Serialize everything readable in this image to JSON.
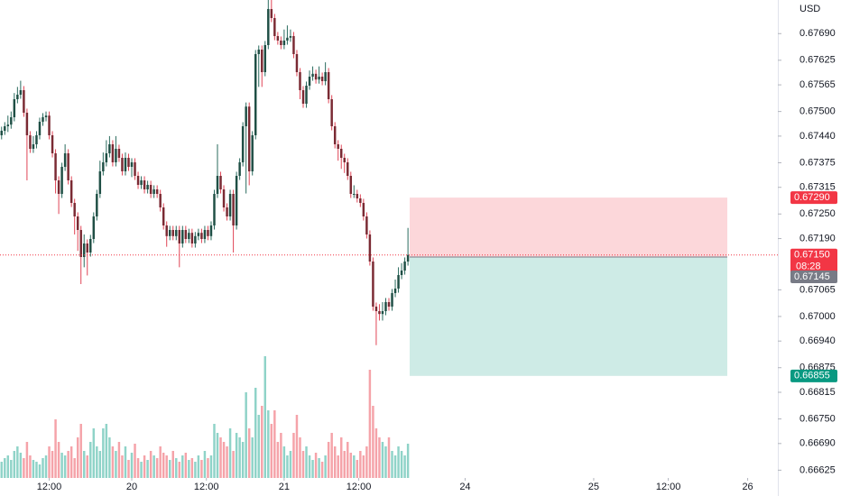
{
  "chart_data": {
    "type": "candlestick",
    "currency": "USD",
    "ylim": [
      0.66606,
      0.67772
    ],
    "xlim": [
      0,
      245
    ],
    "yticks": [
      {
        "value": 0.6769,
        "label": "0.67690"
      },
      {
        "value": 0.67625,
        "label": "0.67625"
      },
      {
        "value": 0.67565,
        "label": "0.67565"
      },
      {
        "value": 0.675,
        "label": "0.67500"
      },
      {
        "value": 0.6744,
        "label": "0.67440"
      },
      {
        "value": 0.67375,
        "label": "0.67375"
      },
      {
        "value": 0.67315,
        "label": "0.67315"
      },
      {
        "value": 0.6725,
        "label": "0.67250"
      },
      {
        "value": 0.6719,
        "label": "0.67190"
      },
      {
        "value": 0.67065,
        "label": "0.67065"
      },
      {
        "value": 0.67,
        "label": "0.67000"
      },
      {
        "value": 0.6694,
        "label": "0.66940"
      },
      {
        "value": 0.66875,
        "label": "0.66875"
      },
      {
        "value": 0.66815,
        "label": "0.66815"
      },
      {
        "value": 0.6675,
        "label": "0.66750"
      },
      {
        "value": 0.6669,
        "label": "0.66690"
      },
      {
        "value": 0.66625,
        "label": "0.66625"
      }
    ],
    "xticks": [
      {
        "value": 15.5,
        "label": "12:00"
      },
      {
        "value": 41.5,
        "label": "20"
      },
      {
        "value": 65,
        "label": "12:00"
      },
      {
        "value": 89.5,
        "label": "21"
      },
      {
        "value": 113,
        "label": "12:00"
      },
      {
        "value": 146.5,
        "label": "24"
      },
      {
        "value": 187,
        "label": "25"
      },
      {
        "value": 210.5,
        "label": "12:00"
      },
      {
        "value": 235.5,
        "label": "26"
      }
    ],
    "colors": {
      "up": "#1f4f45",
      "down": "#7a2a33",
      "up_wick": "#2a6b5e",
      "down_wick": "#e04556",
      "up_volume": "#8fd3c8",
      "down_volume": "#f5a3a9"
    },
    "open": [
      0.67442,
      0.67453,
      0.67464,
      0.67468,
      0.67486,
      0.6753,
      0.67541,
      0.67552,
      0.67497,
      0.67442,
      0.67409,
      0.6742,
      0.67442,
      0.67475,
      0.67486,
      0.6749,
      0.67442,
      0.67398,
      0.67332,
      0.67299,
      0.67365,
      0.67398,
      0.67332,
      0.67277,
      0.67244,
      0.67211,
      0.67145,
      0.67178,
      0.67156,
      0.67189,
      0.67244,
      0.67299,
      0.67354,
      0.67376,
      0.67398,
      0.6742,
      0.67376,
      0.67409,
      0.67387,
      0.67354,
      0.67387,
      0.67365,
      0.67376,
      0.67343,
      0.67321,
      0.67332,
      0.6731,
      0.67321,
      0.67299,
      0.6731,
      0.67299,
      0.67266,
      0.67222,
      0.67196,
      0.67211,
      0.67196,
      0.67211,
      0.67178,
      0.67211,
      0.67189,
      0.67204,
      0.67178,
      0.67196,
      0.67204,
      0.67189,
      0.67211,
      0.67196,
      0.67222,
      0.67299,
      0.67343,
      0.6731,
      0.67266,
      0.67244,
      0.67299,
      0.67222,
      0.67343,
      0.67376,
      0.67464,
      0.67512,
      0.67354,
      0.67442,
      0.6764,
      0.67651,
      0.67596,
      0.67662,
      0.6775,
      0.67728,
      0.67684,
      0.67673,
      0.67662,
      0.67673,
      0.6768,
      0.67684,
      0.6764,
      0.67596,
      0.67552,
      0.67519,
      0.67563,
      0.67585,
      0.67592,
      0.67578,
      0.67585,
      0.67574,
      0.67596,
      0.6753,
      0.67464,
      0.6742,
      0.67409,
      0.67387,
      0.67376,
      0.67343,
      0.67299,
      0.67299,
      0.67288,
      0.67277,
      0.67244,
      0.672,
      0.67134,
      0.67024,
      0.67013,
      0.67006,
      0.67013,
      0.67035,
      0.67024,
      0.67057,
      0.67068,
      0.67101,
      0.67112,
      0.67134
    ],
    "high": [
      0.67463,
      0.67474,
      0.6749,
      0.675,
      0.67545,
      0.6756,
      0.67575,
      0.67562,
      0.67507,
      0.67452,
      0.6744,
      0.67452,
      0.67485,
      0.67496,
      0.675,
      0.675,
      0.67452,
      0.67408,
      0.67342,
      0.67375,
      0.6742,
      0.67408,
      0.67342,
      0.67287,
      0.67254,
      0.67221,
      0.672,
      0.67188,
      0.67199,
      0.67254,
      0.67309,
      0.6738,
      0.674,
      0.6743,
      0.6744,
      0.6743,
      0.6744,
      0.67419,
      0.67397,
      0.674,
      0.67397,
      0.67386,
      0.67386,
      0.67353,
      0.67342,
      0.67342,
      0.67331,
      0.67331,
      0.6732,
      0.6732,
      0.67309,
      0.67276,
      0.67232,
      0.67221,
      0.67221,
      0.67221,
      0.67221,
      0.67221,
      0.67221,
      0.67214,
      0.67214,
      0.67206,
      0.67214,
      0.67214,
      0.67221,
      0.67221,
      0.67232,
      0.67309,
      0.6742,
      0.67353,
      0.6732,
      0.67276,
      0.67309,
      0.67309,
      0.67353,
      0.67386,
      0.67474,
      0.67522,
      0.67522,
      0.67452,
      0.6765,
      0.67661,
      0.67661,
      0.67672,
      0.67772,
      0.67772,
      0.67738,
      0.67694,
      0.67683,
      0.677,
      0.6771,
      0.677,
      0.67694,
      0.6765,
      0.67606,
      0.67562,
      0.67573,
      0.676,
      0.6761,
      0.67602,
      0.6761,
      0.67595,
      0.6762,
      0.67606,
      0.6754,
      0.67474,
      0.6743,
      0.67419,
      0.67397,
      0.67386,
      0.67353,
      0.6732,
      0.67309,
      0.67298,
      0.67287,
      0.67254,
      0.6721,
      0.67144,
      0.67034,
      0.6703,
      0.67035,
      0.67045,
      0.67045,
      0.67067,
      0.6709,
      0.6712,
      0.6713,
      0.67144,
      0.67216
    ],
    "low": [
      0.67432,
      0.67443,
      0.6745,
      0.67458,
      0.67476,
      0.6752,
      0.67531,
      0.67487,
      0.67332,
      0.67399,
      0.67399,
      0.6741,
      0.67432,
      0.67465,
      0.67476,
      0.67432,
      0.67388,
      0.673,
      0.6725,
      0.67289,
      0.67355,
      0.67322,
      0.67267,
      0.672,
      0.6716,
      0.67079,
      0.6712,
      0.671,
      0.67146,
      0.67179,
      0.67234,
      0.67289,
      0.67344,
      0.67366,
      0.67388,
      0.67366,
      0.67366,
      0.67377,
      0.67344,
      0.67344,
      0.67355,
      0.6734,
      0.67333,
      0.67311,
      0.67311,
      0.673,
      0.673,
      0.67289,
      0.67289,
      0.67289,
      0.67256,
      0.67212,
      0.6717,
      0.67186,
      0.67186,
      0.67186,
      0.6712,
      0.67168,
      0.67179,
      0.67179,
      0.67168,
      0.67168,
      0.67186,
      0.67179,
      0.67179,
      0.67186,
      0.67186,
      0.67212,
      0.67289,
      0.673,
      0.67256,
      0.67234,
      0.67234,
      0.67156,
      0.67212,
      0.67333,
      0.67366,
      0.673,
      0.6732,
      0.67344,
      0.67432,
      0.6756,
      0.6756,
      0.67586,
      0.67652,
      0.67718,
      0.67674,
      0.67663,
      0.67652,
      0.67652,
      0.67663,
      0.6767,
      0.6763,
      0.67586,
      0.6753,
      0.67509,
      0.67509,
      0.67553,
      0.67575,
      0.67568,
      0.67568,
      0.67564,
      0.67564,
      0.6752,
      0.67454,
      0.6741,
      0.6738,
      0.6736,
      0.6735,
      0.67333,
      0.67289,
      0.67289,
      0.67278,
      0.67267,
      0.67234,
      0.6719,
      0.67124,
      0.67014,
      0.6693,
      0.6699,
      0.6699,
      0.67003,
      0.67014,
      0.67014,
      0.67047,
      0.67058,
      0.67091,
      0.67102,
      0.67124
    ],
    "close": [
      0.67453,
      0.67464,
      0.67468,
      0.67486,
      0.6753,
      0.67541,
      0.67552,
      0.67497,
      0.67442,
      0.67409,
      0.6742,
      0.67442,
      0.67475,
      0.67486,
      0.6749,
      0.67442,
      0.67398,
      0.67332,
      0.67299,
      0.67365,
      0.67398,
      0.67332,
      0.67277,
      0.67244,
      0.67211,
      0.67145,
      0.67178,
      0.67156,
      0.67189,
      0.67244,
      0.67299,
      0.67354,
      0.67376,
      0.67398,
      0.6742,
      0.67376,
      0.67409,
      0.67387,
      0.67354,
      0.67387,
      0.67365,
      0.67376,
      0.67343,
      0.67321,
      0.67332,
      0.6731,
      0.67321,
      0.67299,
      0.6731,
      0.67299,
      0.67266,
      0.67222,
      0.67196,
      0.67211,
      0.67196,
      0.67211,
      0.67178,
      0.67211,
      0.67189,
      0.67204,
      0.67178,
      0.67196,
      0.67204,
      0.67189,
      0.67211,
      0.67196,
      0.67222,
      0.67299,
      0.67343,
      0.6731,
      0.67266,
      0.67244,
      0.67299,
      0.67222,
      0.67343,
      0.67376,
      0.67464,
      0.67512,
      0.67354,
      0.67442,
      0.6764,
      0.67651,
      0.67596,
      0.67662,
      0.6775,
      0.67728,
      0.67684,
      0.67673,
      0.67662,
      0.67673,
      0.6768,
      0.67684,
      0.6764,
      0.67596,
      0.67552,
      0.67519,
      0.67563,
      0.67585,
      0.67592,
      0.67578,
      0.67585,
      0.67574,
      0.67596,
      0.6753,
      0.67464,
      0.6742,
      0.67409,
      0.67387,
      0.67376,
      0.67343,
      0.67299,
      0.67299,
      0.67288,
      0.67277,
      0.67244,
      0.672,
      0.67134,
      0.67024,
      0.67013,
      0.67006,
      0.67013,
      0.67035,
      0.67024,
      0.67057,
      0.67068,
      0.67101,
      0.67112,
      0.67134,
      0.6715
    ],
    "volume": [
      18,
      22,
      25,
      20,
      30,
      35,
      28,
      22,
      40,
      25,
      20,
      18,
      15,
      22,
      25,
      35,
      30,
      65,
      40,
      28,
      25,
      30,
      35,
      22,
      45,
      60,
      30,
      25,
      40,
      55,
      35,
      30,
      55,
      60,
      45,
      35,
      30,
      40,
      25,
      35,
      20,
      28,
      38,
      22,
      18,
      25,
      20,
      30,
      25,
      22,
      35,
      28,
      25,
      20,
      30,
      22,
      18,
      25,
      28,
      20,
      22,
      18,
      25,
      20,
      30,
      22,
      25,
      60,
      50,
      45,
      40,
      35,
      55,
      30,
      50,
      45,
      40,
      95,
      55,
      45,
      100,
      70,
      80,
      135,
      75,
      60,
      75,
      40,
      50,
      35,
      25,
      30,
      50,
      70,
      45,
      30,
      35,
      25,
      20,
      28,
      22,
      18,
      25,
      40,
      50,
      35,
      25,
      45,
      30,
      40,
      28,
      25,
      20,
      30,
      25,
      35,
      120,
      80,
      55,
      45,
      40,
      35,
      45,
      30,
      25,
      35,
      30,
      25,
      38
    ],
    "last_price": {
      "value": 0.6715,
      "label": "0.67150",
      "countdown": "08:28",
      "color": "#f23645"
    },
    "position": {
      "stop": {
        "value": 0.6729,
        "label": "0.67290",
        "color": "#f23645"
      },
      "entry": {
        "value": 0.67145,
        "label": "0.67145",
        "color": "#787b86"
      },
      "target": {
        "value": 0.66855,
        "label": "0.66855",
        "color": "#089981"
      }
    }
  }
}
